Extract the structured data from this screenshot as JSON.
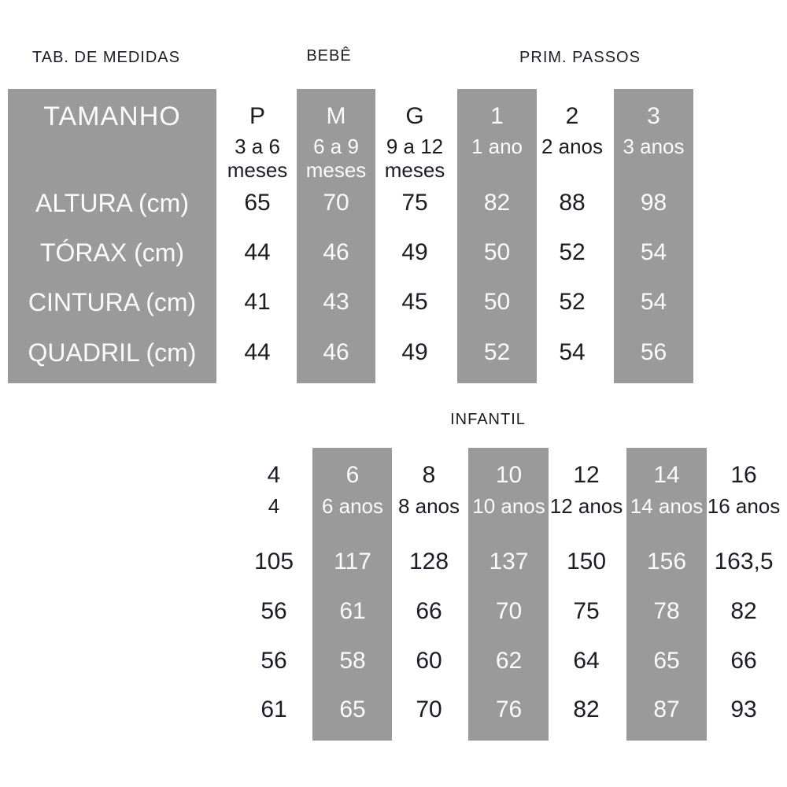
{
  "titles": {
    "medidas": "TAB. DE MEDIDAS",
    "bebe": "BEBÊ",
    "prim_passos": "PRIM. PASSOS",
    "infantil": "INFANTIL"
  },
  "colors": {
    "shade_gray": "#9a9a9a",
    "text_dark": "#1c1c26",
    "text_light": "#fbfbfb",
    "background": "#ffffff"
  },
  "top_table": {
    "row_labels": {
      "tamanho": "TAMANHO",
      "altura": "ALTURA (cm)",
      "torax": "TÓRAX (cm)",
      "cintura": "CINTURA (cm)",
      "quadril": "QUADRIL (cm)"
    },
    "columns": [
      {
        "size": "P",
        "age1": "3 a 6",
        "age2": "meses",
        "altura": "65",
        "torax": "44",
        "cintura": "41",
        "quadril": "44",
        "shaded": false
      },
      {
        "size": "M",
        "age1": "6 a 9",
        "age2": "meses",
        "altura": "70",
        "torax": "46",
        "cintura": "43",
        "quadril": "46",
        "shaded": true
      },
      {
        "size": "G",
        "age1": "9 a 12",
        "age2": "meses",
        "altura": "75",
        "torax": "49",
        "cintura": "45",
        "quadril": "49",
        "shaded": false
      },
      {
        "size": "1",
        "age1": "1 ano",
        "altura": "82",
        "torax": "50",
        "cintura": "50",
        "quadril": "52",
        "shaded": true
      },
      {
        "size": "2",
        "age1": "2 anos",
        "altura": "88",
        "torax": "52",
        "cintura": "52",
        "quadril": "54",
        "shaded": false
      },
      {
        "size": "3",
        "age1": "3 anos",
        "altura": "98",
        "torax": "54",
        "cintura": "54",
        "quadril": "56",
        "shaded": true
      }
    ]
  },
  "bottom_table": {
    "columns": [
      {
        "size": "4",
        "age": "4",
        "altura": "105",
        "torax": "56",
        "cintura": "56",
        "quadril": "61",
        "shaded": false
      },
      {
        "size": "6",
        "age": "6 anos",
        "altura": "117",
        "torax": "61",
        "cintura": "58",
        "quadril": "65",
        "shaded": true
      },
      {
        "size": "8",
        "age": "8 anos",
        "altura": "128",
        "torax": "66",
        "cintura": "60",
        "quadril": "70",
        "shaded": false
      },
      {
        "size": "10",
        "age": "10 anos",
        "altura": "137",
        "torax": "70",
        "cintura": "62",
        "quadril": "76",
        "shaded": true
      },
      {
        "size": "12",
        "age": "12 anos",
        "altura": "150",
        "torax": "75",
        "cintura": "64",
        "quadril": "82",
        "shaded": false
      },
      {
        "size": "14",
        "age": "14 anos",
        "altura": "156",
        "torax": "78",
        "cintura": "65",
        "quadril": "87",
        "shaded": true
      },
      {
        "size": "16",
        "age": "16 anos",
        "altura": "163,5",
        "torax": "82",
        "cintura": "66",
        "quadril": "93",
        "shaded": false
      }
    ]
  },
  "chart_data": [
    {
      "type": "table",
      "title": "TAB. DE MEDIDAS",
      "group_headers": [
        "BEBÊ",
        "PRIM. PASSOS"
      ],
      "columns": [
        "P (3 a 6 meses)",
        "M (6 a 9 meses)",
        "G (9 a 12 meses)",
        "1 (1 ano)",
        "2 (2 anos)",
        "3 (3 anos)"
      ],
      "rows": [
        {
          "label": "ALTURA (cm)",
          "values": [
            65,
            70,
            75,
            82,
            88,
            98
          ]
        },
        {
          "label": "TÓRAX (cm)",
          "values": [
            44,
            46,
            49,
            50,
            52,
            54
          ]
        },
        {
          "label": "CINTURA (cm)",
          "values": [
            41,
            43,
            45,
            50,
            52,
            54
          ]
        },
        {
          "label": "QUADRIL (cm)",
          "values": [
            44,
            46,
            49,
            52,
            54,
            56
          ]
        }
      ]
    },
    {
      "type": "table",
      "title": "INFANTIL",
      "columns": [
        "4 (4)",
        "6 (6 anos)",
        "8 (8 anos)",
        "10 (10 anos)",
        "12 (12 anos)",
        "14 (14 anos)",
        "16 (16 anos)"
      ],
      "rows": [
        {
          "label": "ALTURA (cm)",
          "values": [
            105,
            117,
            128,
            137,
            150,
            156,
            "163,5"
          ]
        },
        {
          "label": "TÓRAX (cm)",
          "values": [
            56,
            61,
            66,
            70,
            75,
            78,
            82
          ]
        },
        {
          "label": "CINTURA (cm)",
          "values": [
            56,
            58,
            60,
            62,
            64,
            65,
            66
          ]
        },
        {
          "label": "QUADRIL (cm)",
          "values": [
            61,
            65,
            70,
            76,
            82,
            87,
            93
          ]
        }
      ]
    }
  ]
}
